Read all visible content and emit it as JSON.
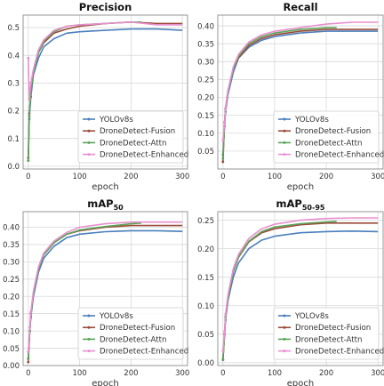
{
  "legend_entries": [
    "YOLOv8s",
    "DroneDetect-Fusion",
    "DroneDetect-Attn",
    "DroneDetect-Enhanced"
  ],
  "colors": {
    "YOLOv8s": "#4a7fbd",
    "DroneDetect-Fusion": "#9c4a3a",
    "DroneDetect-Attn": "#5aa55a",
    "DroneDetect-Enhanced": "#e98fd0",
    "grid": "#d9d9d9",
    "frame": "#8c8c8c"
  },
  "chart_data": [
    {
      "type": "line",
      "title": "Precision",
      "title_sub": "",
      "xlabel": "epoch",
      "ylabel": "",
      "xlim": [
        -10,
        310
      ],
      "ylim": [
        -0.01,
        0.545
      ],
      "xticks": [
        0,
        100,
        200,
        300
      ],
      "yticks": [
        0.0,
        0.1,
        0.2,
        0.3,
        0.4,
        0.5
      ],
      "ytick_labels": [
        "0.0",
        "0.1",
        "0.2",
        "0.3",
        "0.4",
        "0.5"
      ],
      "grid": true,
      "legend": "lower-right",
      "series": [
        {
          "name": "YOLOv8s",
          "x": [
            0,
            2,
            5,
            10,
            20,
            30,
            50,
            75,
            100,
            150,
            200,
            250,
            300
          ],
          "values": [
            0.02,
            0.17,
            0.25,
            0.33,
            0.39,
            0.43,
            0.46,
            0.48,
            0.485,
            0.49,
            0.495,
            0.495,
            0.49
          ]
        },
        {
          "name": "DroneDetect-Fusion",
          "x": [
            0,
            2,
            5,
            10,
            20,
            30,
            50,
            75,
            100,
            150,
            200,
            250,
            300
          ],
          "values": [
            0.03,
            0.19,
            0.27,
            0.34,
            0.41,
            0.445,
            0.48,
            0.495,
            0.505,
            0.515,
            0.52,
            0.515,
            0.515
          ]
        },
        {
          "name": "DroneDetect-Attn",
          "x": [
            0,
            2,
            5,
            10,
            20,
            30,
            50,
            75,
            100,
            150,
            200,
            220
          ],
          "values": [
            0.02,
            0.18,
            0.27,
            0.34,
            0.41,
            0.45,
            0.485,
            0.505,
            0.51,
            0.515,
            0.52,
            0.52
          ]
        },
        {
          "name": "DroneDetect-Enhanced",
          "x": [
            0,
            2,
            5,
            10,
            20,
            30,
            50,
            75,
            100,
            150,
            200,
            250,
            300
          ],
          "values": [
            0.39,
            0.24,
            0.3,
            0.35,
            0.42,
            0.455,
            0.49,
            0.505,
            0.51,
            0.515,
            0.52,
            0.51,
            0.51
          ]
        }
      ]
    },
    {
      "type": "line",
      "title": "Recall",
      "title_sub": "",
      "xlabel": "epoch",
      "ylabel": "",
      "xlim": [
        -10,
        310
      ],
      "ylim": [
        0.0,
        0.43
      ],
      "xticks": [
        0,
        100,
        200,
        300
      ],
      "yticks": [
        0.05,
        0.1,
        0.15,
        0.2,
        0.25,
        0.3,
        0.35,
        0.4
      ],
      "ytick_labels": [
        "0.05",
        "0.10",
        "0.15",
        "0.20",
        "0.25",
        "0.30",
        "0.35",
        "0.40"
      ],
      "grid": true,
      "legend": "lower-right",
      "series": [
        {
          "name": "YOLOv8s",
          "x": [
            0,
            3,
            5,
            10,
            20,
            30,
            50,
            75,
            100,
            150,
            200,
            250,
            300
          ],
          "values": [
            0.04,
            0.12,
            0.16,
            0.21,
            0.27,
            0.31,
            0.34,
            0.36,
            0.37,
            0.38,
            0.385,
            0.385,
            0.385
          ]
        },
        {
          "name": "DroneDetect-Fusion",
          "x": [
            0,
            3,
            5,
            10,
            20,
            30,
            50,
            75,
            100,
            150,
            200,
            250,
            300
          ],
          "values": [
            0.02,
            0.13,
            0.17,
            0.22,
            0.28,
            0.31,
            0.345,
            0.365,
            0.375,
            0.385,
            0.39,
            0.39,
            0.39
          ]
        },
        {
          "name": "DroneDetect-Attn",
          "x": [
            0,
            3,
            5,
            10,
            20,
            30,
            50,
            75,
            100,
            150,
            200,
            220
          ],
          "values": [
            0.03,
            0.13,
            0.17,
            0.22,
            0.28,
            0.315,
            0.35,
            0.37,
            0.38,
            0.39,
            0.395,
            0.395
          ]
        },
        {
          "name": "DroneDetect-Enhanced",
          "x": [
            0,
            3,
            5,
            10,
            20,
            30,
            50,
            75,
            100,
            150,
            200,
            250,
            300
          ],
          "values": [
            0.08,
            0.13,
            0.17,
            0.22,
            0.285,
            0.32,
            0.355,
            0.375,
            0.385,
            0.395,
            0.405,
            0.41,
            0.41
          ]
        }
      ]
    },
    {
      "type": "line",
      "title": "mAP",
      "title_sub": "50",
      "xlabel": "epoch",
      "ylabel": "",
      "xlim": [
        -10,
        310
      ],
      "ylim": [
        0.0,
        0.445
      ],
      "xticks": [
        0,
        100,
        200,
        300
      ],
      "yticks": [
        0.0,
        0.05,
        0.1,
        0.15,
        0.2,
        0.25,
        0.3,
        0.35,
        0.4
      ],
      "ytick_labels": [
        "0.00",
        "0.05",
        "0.10",
        "0.15",
        "0.20",
        "0.25",
        "0.30",
        "0.35",
        "0.40"
      ],
      "grid": true,
      "legend": "lower-right",
      "series": [
        {
          "name": "YOLOv8s",
          "x": [
            0,
            3,
            5,
            10,
            20,
            30,
            50,
            75,
            100,
            150,
            200,
            250,
            300
          ],
          "values": [
            0.02,
            0.1,
            0.14,
            0.2,
            0.27,
            0.31,
            0.345,
            0.37,
            0.38,
            0.387,
            0.39,
            0.39,
            0.388
          ]
        },
        {
          "name": "DroneDetect-Fusion",
          "x": [
            0,
            3,
            5,
            10,
            20,
            30,
            50,
            75,
            100,
            150,
            200,
            250,
            300
          ],
          "values": [
            0.01,
            0.1,
            0.15,
            0.21,
            0.28,
            0.32,
            0.355,
            0.38,
            0.39,
            0.4,
            0.405,
            0.405,
            0.405
          ]
        },
        {
          "name": "DroneDetect-Attn",
          "x": [
            0,
            3,
            5,
            10,
            20,
            30,
            50,
            75,
            100,
            150,
            200,
            220
          ],
          "values": [
            0.02,
            0.1,
            0.15,
            0.21,
            0.28,
            0.32,
            0.355,
            0.38,
            0.392,
            0.402,
            0.41,
            0.412
          ]
        },
        {
          "name": "DroneDetect-Enhanced",
          "x": [
            0,
            3,
            5,
            10,
            20,
            30,
            50,
            75,
            100,
            150,
            200,
            250,
            300
          ],
          "values": [
            0.04,
            0.11,
            0.155,
            0.215,
            0.285,
            0.325,
            0.36,
            0.385,
            0.4,
            0.41,
            0.415,
            0.415,
            0.415
          ]
        }
      ]
    },
    {
      "type": "line",
      "title": "mAP",
      "title_sub": "50-95",
      "xlabel": "epoch",
      "ylabel": "",
      "xlim": [
        -10,
        310
      ],
      "ylim": [
        -0.005,
        0.265
      ],
      "xticks": [
        0,
        100,
        200,
        300
      ],
      "yticks": [
        0.0,
        0.05,
        0.1,
        0.15,
        0.2,
        0.25
      ],
      "ytick_labels": [
        "0.00",
        "0.05",
        "0.10",
        "0.15",
        "0.20",
        "0.25"
      ],
      "grid": true,
      "legend": "lower-right",
      "series": [
        {
          "name": "YOLOv8s",
          "x": [
            0,
            3,
            5,
            10,
            20,
            30,
            50,
            75,
            100,
            150,
            200,
            250,
            300
          ],
          "values": [
            0.005,
            0.05,
            0.075,
            0.11,
            0.15,
            0.175,
            0.2,
            0.215,
            0.222,
            0.228,
            0.23,
            0.231,
            0.23
          ]
        },
        {
          "name": "DroneDetect-Fusion",
          "x": [
            0,
            3,
            5,
            10,
            20,
            30,
            50,
            75,
            100,
            150,
            200,
            250,
            300
          ],
          "values": [
            0.005,
            0.05,
            0.08,
            0.115,
            0.16,
            0.185,
            0.212,
            0.228,
            0.235,
            0.242,
            0.245,
            0.245,
            0.245
          ]
        },
        {
          "name": "DroneDetect-Attn",
          "x": [
            0,
            3,
            5,
            10,
            20,
            30,
            50,
            75,
            100,
            150,
            200,
            220
          ],
          "values": [
            0.005,
            0.05,
            0.08,
            0.115,
            0.16,
            0.186,
            0.213,
            0.23,
            0.238,
            0.244,
            0.247,
            0.248
          ]
        },
        {
          "name": "DroneDetect-Enhanced",
          "x": [
            0,
            3,
            5,
            10,
            20,
            30,
            50,
            75,
            100,
            150,
            200,
            250,
            300
          ],
          "values": [
            0.02,
            0.055,
            0.085,
            0.12,
            0.165,
            0.19,
            0.218,
            0.235,
            0.243,
            0.25,
            0.253,
            0.254,
            0.254
          ]
        }
      ]
    }
  ]
}
